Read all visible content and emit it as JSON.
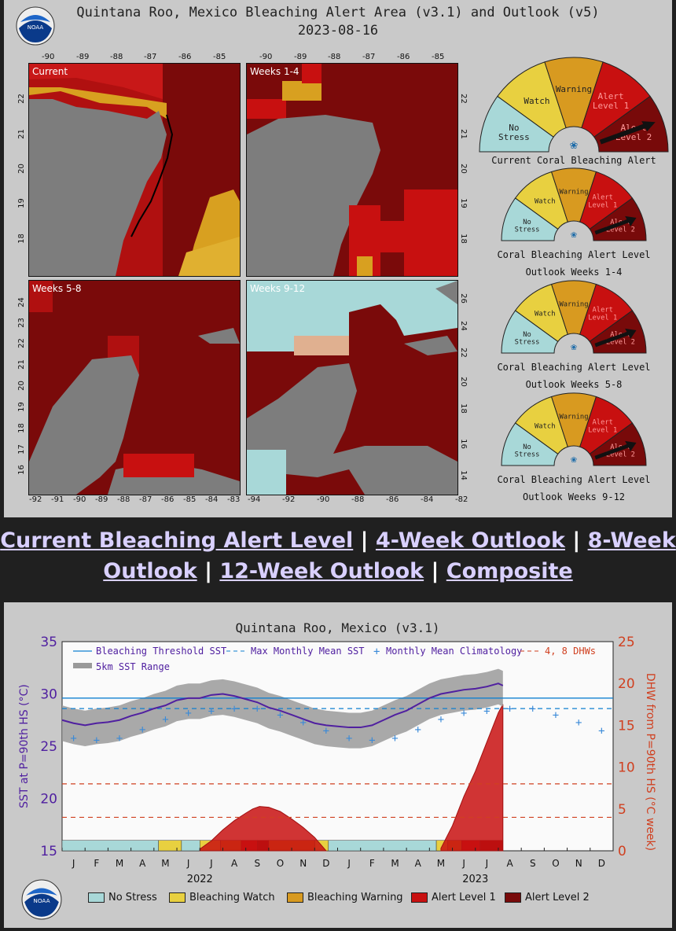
{
  "header": {
    "title_line1": "Quintana Roo, Mexico Bleaching Alert Area (v3.1) and Outlook (v5)",
    "title_line2": "2023-08-16",
    "logo_text": "NOAA"
  },
  "maps": [
    {
      "label": "Current"
    },
    {
      "label": "Weeks 1-4"
    },
    {
      "label": "Weeks 5-8"
    },
    {
      "label": "Weeks 9-12"
    }
  ],
  "map_ticks": {
    "top_lon": [
      "-90",
      "-89",
      "-88",
      "-87",
      "-86",
      "-85"
    ],
    "left_lat_upper": [
      "22",
      "21",
      "20",
      "19",
      "18"
    ],
    "right_lat_upper": [
      "22",
      "21",
      "20",
      "19",
      "18"
    ],
    "left_lat_lower": [
      "24",
      "23",
      "22",
      "21",
      "20",
      "19",
      "18",
      "17",
      "16"
    ],
    "right_lat_lower": [
      "26",
      "24",
      "22",
      "20",
      "18",
      "16",
      "14"
    ],
    "bottom_lon_left": [
      "-92",
      "-91",
      "-90",
      "-89",
      "-88",
      "-87",
      "-86",
      "-85",
      "-84",
      "-83"
    ],
    "bottom_lon_right": [
      "-94",
      "-92",
      "-90",
      "-88",
      "-86",
      "-84",
      "-82"
    ]
  },
  "gauges": [
    {
      "cap1": "Current Coral Bleaching Alert Level",
      "cap2": ""
    },
    {
      "cap1": "Coral Bleaching Alert Level",
      "cap2": "Outlook Weeks 1-4"
    },
    {
      "cap1": "Coral Bleaching Alert Level",
      "cap2": "Outlook Weeks 5-8"
    },
    {
      "cap1": "Coral Bleaching Alert Level",
      "cap2": "Outlook Weeks 9-12"
    }
  ],
  "gauge_labels": {
    "no_stress": [
      "No",
      "Stress"
    ],
    "watch": "Watch",
    "warning": "Warning",
    "alert1": [
      "Alert",
      "Level 1"
    ],
    "alert2": [
      "Alert",
      "Level 2"
    ]
  },
  "links": {
    "current": "Current Bleaching Alert Level",
    "week4": "4-Week Outlook",
    "week8": "8-Week Outlook",
    "week12": "12-Week Outlook",
    "composite": "Composite",
    "sep": "|"
  },
  "colors": {
    "no_stress": "#a8d8d8",
    "watch": "#e8d040",
    "warning": "#d89a20",
    "alert1": "#c81010",
    "alert2": "#780a0a",
    "land": "#808080",
    "threshold": "#1080d0",
    "sst": "#5020a0",
    "dhw": "#d04020"
  },
  "chart_data": {
    "type": "line",
    "title": "Quintana Roo, Mexico (v3.1)",
    "ylabel": "SST at P=90th HS (°C)",
    "ylabel_right": "DHW from P=90th HS (°C week)",
    "ylim": [
      15,
      35
    ],
    "ylim_right": [
      0,
      25
    ],
    "yticks": [
      "15",
      "20",
      "25",
      "30",
      "35"
    ],
    "yticks_right": [
      "0",
      "5",
      "10",
      "15",
      "20",
      "25"
    ],
    "months": [
      "J",
      "F",
      "M",
      "A",
      "M",
      "J",
      "J",
      "A",
      "S",
      "O",
      "N",
      "D",
      "J",
      "F",
      "M",
      "A",
      "M",
      "J",
      "J",
      "A",
      "S",
      "O",
      "N",
      "D"
    ],
    "years": [
      "2022",
      "2023"
    ],
    "legend": {
      "threshold": "Bleaching Threshold SST",
      "mmm": "Max Monthly Mean SST",
      "clim": "Monthly Mean Climatology",
      "dhw": "4, 8 DHWs",
      "range": "5km SST Range"
    },
    "status_legend": [
      "No Stress",
      "Bleaching Watch",
      "Bleaching Warning",
      "Alert Level 1",
      "Alert Level 2"
    ],
    "threshold_sst": 29.6,
    "max_monthly_mean": 28.6,
    "dhw_lines": [
      4,
      8
    ],
    "climatology": {
      "x": [
        0.5,
        1.5,
        2.5,
        3.5,
        4.5,
        5.5,
        6.5,
        7.5,
        8.5,
        9.5,
        10.5,
        11.5,
        12.5,
        13.5,
        14.5,
        15.5,
        16.5,
        17.5,
        18.5,
        19.5,
        20.5,
        21.5,
        22.5,
        23.5
      ],
      "y": [
        25.8,
        25.6,
        25.8,
        26.6,
        27.6,
        28.2,
        28.4,
        28.6,
        28.6,
        28.0,
        27.3,
        26.5,
        25.8,
        25.6,
        25.8,
        26.6,
        27.6,
        28.2,
        28.4,
        28.6,
        28.6,
        28.0,
        27.3,
        26.5
      ]
    },
    "sst": {
      "x": [
        0,
        0.5,
        1,
        1.5,
        2,
        2.5,
        3,
        3.5,
        4,
        4.5,
        5,
        5.5,
        6,
        6.5,
        7,
        7.5,
        8,
        8.5,
        9,
        9.5,
        10,
        10.5,
        11,
        11.5,
        12,
        12.5,
        13,
        13.5,
        14,
        14.5,
        15,
        15.5,
        16,
        16.5,
        17,
        17.5,
        18,
        18.5,
        19,
        19.2
      ],
      "y": [
        27.5,
        27.2,
        27.0,
        27.2,
        27.3,
        27.5,
        27.9,
        28.2,
        28.6,
        28.9,
        29.4,
        29.6,
        29.6,
        29.9,
        30.0,
        29.8,
        29.5,
        29.2,
        28.7,
        28.4,
        28.0,
        27.6,
        27.2,
        27.0,
        26.9,
        26.8,
        26.8,
        27.0,
        27.5,
        28.0,
        28.4,
        29.0,
        29.6,
        30.0,
        30.2,
        30.4,
        30.5,
        30.7,
        31.0,
        30.8
      ]
    },
    "dhw": {
      "x": [
        6.0,
        6.5,
        7.0,
        7.5,
        8.0,
        8.3,
        8.6,
        9.0,
        9.5,
        10.0,
        10.5,
        11.0,
        11.5,
        16.5,
        17.0,
        17.5,
        18.0,
        18.5,
        19.0,
        19.2
      ],
      "y": [
        0.2,
        1.2,
        2.5,
        3.6,
        4.5,
        5.0,
        5.3,
        5.2,
        4.7,
        3.8,
        2.8,
        1.6,
        0,
        0.3,
        3.0,
        6.5,
        9.5,
        13.0,
        16.5,
        17.5
      ]
    },
    "status_bar": [
      {
        "from": 0,
        "to": 4.2,
        "level": "no_stress"
      },
      {
        "from": 4.2,
        "to": 5.2,
        "level": "watch"
      },
      {
        "from": 5.2,
        "to": 6.0,
        "level": "no_stress"
      },
      {
        "from": 6.0,
        "to": 6.9,
        "level": "watch"
      },
      {
        "from": 6.9,
        "to": 7.8,
        "level": "warning"
      },
      {
        "from": 7.8,
        "to": 8.5,
        "level": "alert1"
      },
      {
        "from": 8.5,
        "to": 9.0,
        "level": "alert2"
      },
      {
        "from": 9.0,
        "to": 11.0,
        "level": "warning"
      },
      {
        "from": 11.0,
        "to": 11.6,
        "level": "watch"
      },
      {
        "from": 11.6,
        "to": 16.3,
        "level": "no_stress"
      },
      {
        "from": 16.3,
        "to": 16.8,
        "level": "watch"
      },
      {
        "from": 16.8,
        "to": 17.4,
        "level": "warning"
      },
      {
        "from": 17.4,
        "to": 18.2,
        "level": "alert1"
      },
      {
        "from": 18.2,
        "to": 19.2,
        "level": "alert2"
      },
      {
        "from": 19.2,
        "to": 24,
        "level": "none"
      }
    ]
  }
}
